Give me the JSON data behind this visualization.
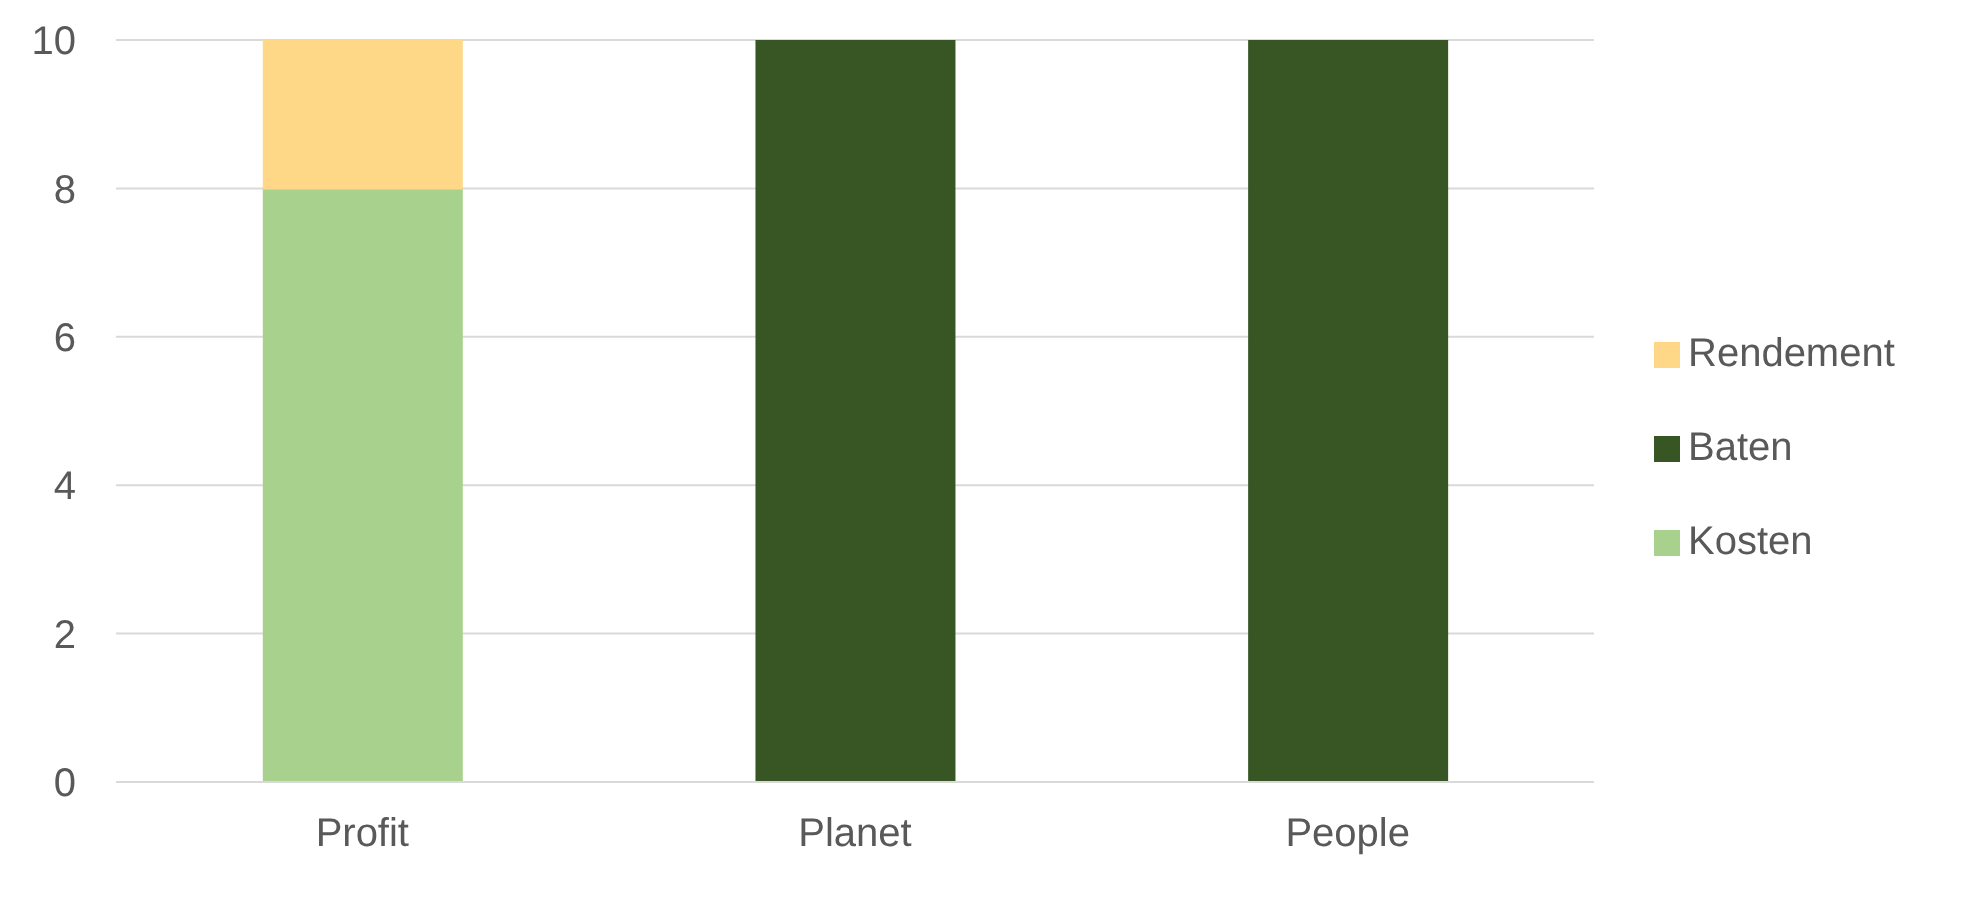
{
  "chart_data": {
    "type": "bar",
    "stacked": true,
    "categories": [
      "Profit",
      "Planet",
      "People"
    ],
    "series": [
      {
        "name": "Kosten",
        "color": "#a9d18e",
        "values": [
          8,
          null,
          null
        ]
      },
      {
        "name": "Baten",
        "color": "#375623",
        "values": [
          null,
          10,
          10
        ]
      },
      {
        "name": "Rendement",
        "color": "#ffd887",
        "values": [
          2,
          null,
          null
        ]
      }
    ],
    "ylim": [
      0,
      10
    ],
    "yticks": [
      0,
      2,
      4,
      6,
      8,
      10
    ],
    "grid": "y",
    "legend": "right"
  }
}
